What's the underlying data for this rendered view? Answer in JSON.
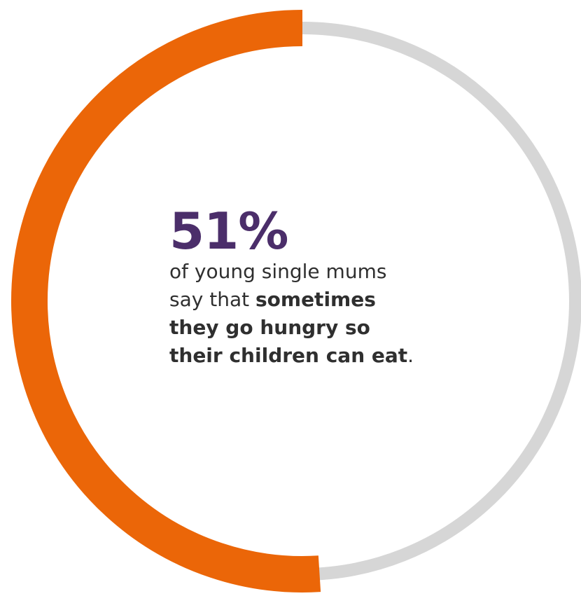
{
  "chart_data": {
    "type": "donut",
    "value": 51,
    "max": 100,
    "colors": {
      "filled": "#EB6608",
      "track": "#D6D6D6",
      "value_text": "#4B2E6A",
      "body_text": "#2F2F2F"
    }
  },
  "stat": {
    "value_label": "51%",
    "line1": "of young single mums",
    "line2_plain": "say that ",
    "line2_bold": "sometimes",
    "line3_bold": "they go hungry so",
    "line4_bold": "their children can eat",
    "line4_end": "."
  }
}
